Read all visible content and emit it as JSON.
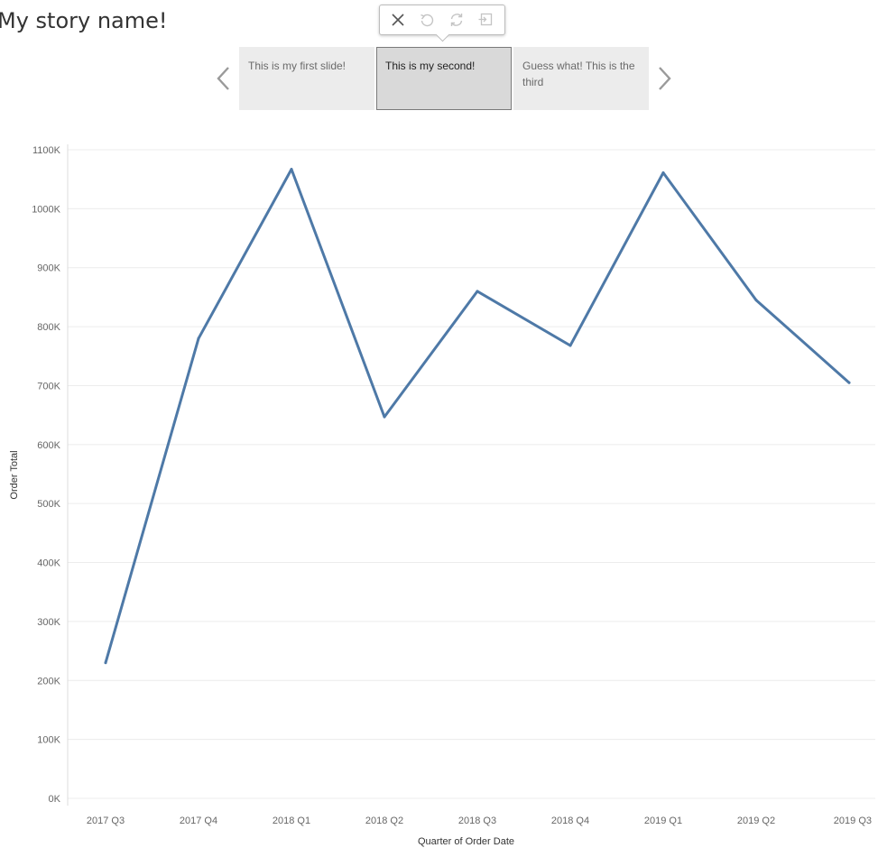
{
  "story": {
    "title": "My story name!",
    "points": [
      {
        "caption": "This is my first slide!",
        "active": false
      },
      {
        "caption": "This is my second!",
        "active": true
      },
      {
        "caption": "Guess what! This is the third",
        "active": false
      }
    ]
  },
  "toolbar": {
    "buttons": [
      {
        "icon": "close-icon",
        "enabled": true
      },
      {
        "icon": "undo-icon",
        "enabled": false
      },
      {
        "icon": "revert-icon",
        "enabled": false
      },
      {
        "icon": "update-icon",
        "enabled": false
      }
    ]
  },
  "colors": {
    "line": "#4e79a7",
    "grid": "#ececec",
    "active_point": "#d9d9d9",
    "inactive_point": "#ececec"
  },
  "chart_data": {
    "type": "line",
    "x": [
      "2017 Q3",
      "2017 Q4",
      "2018 Q1",
      "2018 Q2",
      "2018 Q3",
      "2018 Q4",
      "2019 Q1",
      "2019 Q2",
      "2019 Q3"
    ],
    "series": [
      {
        "values": [
          230000,
          780000,
          1067000,
          647000,
          860000,
          768000,
          1061000,
          845000,
          705000
        ]
      }
    ],
    "xlabel": "Quarter of Order Date",
    "ylabel": "Order Total",
    "ylim": [
      0,
      1100000
    ],
    "yticks": [
      0,
      100000,
      200000,
      300000,
      400000,
      500000,
      600000,
      700000,
      800000,
      900000,
      1000000,
      1100000
    ],
    "ytick_labels": [
      "0K",
      "100K",
      "200K",
      "300K",
      "400K",
      "500K",
      "600K",
      "700K",
      "800K",
      "900K",
      "1000K",
      "1100K"
    ],
    "grid": true,
    "legend": "none"
  }
}
